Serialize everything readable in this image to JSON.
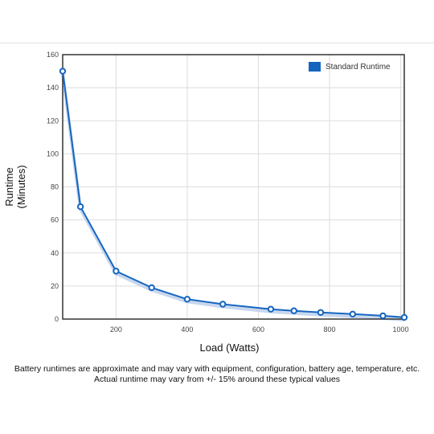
{
  "chart_data": {
    "type": "line",
    "xlabel": "Load (Watts)",
    "ylabel": [
      "Runtime",
      "(Minutes)"
    ],
    "xlim": [
      50,
      1010
    ],
    "ylim": [
      0,
      160
    ],
    "x_ticks": [
      200,
      400,
      600,
      800,
      1000
    ],
    "y_ticks": [
      0,
      20,
      40,
      60,
      80,
      100,
      120,
      140,
      160
    ],
    "grid": true,
    "legend_position": "top-right",
    "series": [
      {
        "name": "Standard Runtime",
        "color": "#1565c0",
        "points": [
          {
            "x": 50,
            "y": 150
          },
          {
            "x": 100,
            "y": 68
          },
          {
            "x": 200,
            "y": 29
          },
          {
            "x": 300,
            "y": 19
          },
          {
            "x": 400,
            "y": 12
          },
          {
            "x": 500,
            "y": 9
          },
          {
            "x": 635,
            "y": 6
          },
          {
            "x": 700,
            "y": 5
          },
          {
            "x": 775,
            "y": 4
          },
          {
            "x": 865,
            "y": 3
          },
          {
            "x": 950,
            "y": 2
          },
          {
            "x": 1010,
            "y": 1
          }
        ]
      }
    ]
  },
  "footnote": {
    "line1": "Battery runtimes are approximate and may vary with equipment, configuration, battery age, temperature, etc.",
    "line2": "Actual runtime may vary from +/- 15% around these typical values"
  }
}
